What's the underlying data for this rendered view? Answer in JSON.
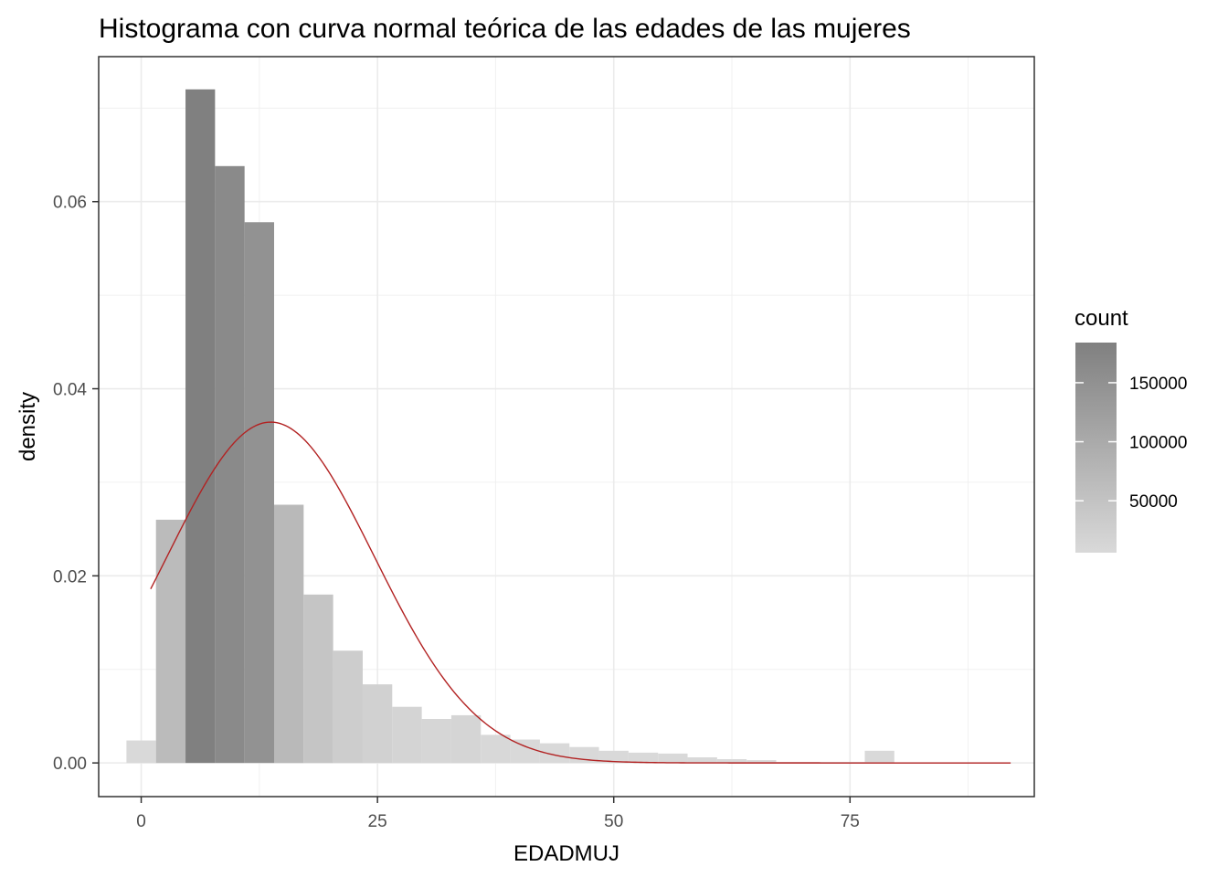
{
  "chart_data": {
    "type": "bar",
    "title": "Histograma con curva normal teórica de las edades de las mujeres",
    "xlabel": "EDADMUJ",
    "ylabel": "density",
    "xlim": [
      -4.5,
      94.5
    ],
    "ylim": [
      -0.0036,
      0.0755
    ],
    "x_ticks": [
      0,
      25,
      50,
      75
    ],
    "x_tick_labels": [
      "0",
      "25",
      "50",
      "75"
    ],
    "y_ticks": [
      0.0,
      0.02,
      0.04,
      0.06
    ],
    "y_tick_labels": [
      "0.00",
      "0.02",
      "0.04",
      "0.06"
    ],
    "grid": true,
    "bin_width": 3.125,
    "bins": [
      {
        "x0": -1.5625,
        "x1": 1.5625,
        "density": 0.0024
      },
      {
        "x0": 1.5625,
        "x1": 4.6875,
        "density": 0.026
      },
      {
        "x0": 4.6875,
        "x1": 7.8125,
        "density": 0.072
      },
      {
        "x0": 7.8125,
        "x1": 10.9375,
        "density": 0.0638
      },
      {
        "x0": 10.9375,
        "x1": 14.0625,
        "density": 0.0578
      },
      {
        "x0": 14.0625,
        "x1": 17.1875,
        "density": 0.0276
      },
      {
        "x0": 17.1875,
        "x1": 20.3125,
        "density": 0.018
      },
      {
        "x0": 20.3125,
        "x1": 23.4375,
        "density": 0.012
      },
      {
        "x0": 23.4375,
        "x1": 26.5625,
        "density": 0.0084
      },
      {
        "x0": 26.5625,
        "x1": 29.6875,
        "density": 0.006
      },
      {
        "x0": 29.6875,
        "x1": 32.8125,
        "density": 0.0047
      },
      {
        "x0": 32.8125,
        "x1": 35.9375,
        "density": 0.0051
      },
      {
        "x0": 35.9375,
        "x1": 39.0625,
        "density": 0.003
      },
      {
        "x0": 39.0625,
        "x1": 42.1875,
        "density": 0.0025
      },
      {
        "x0": 42.1875,
        "x1": 45.3125,
        "density": 0.0021
      },
      {
        "x0": 45.3125,
        "x1": 48.4375,
        "density": 0.0017
      },
      {
        "x0": 48.4375,
        "x1": 51.5625,
        "density": 0.0013
      },
      {
        "x0": 51.5625,
        "x1": 54.6875,
        "density": 0.0011
      },
      {
        "x0": 54.6875,
        "x1": 57.8125,
        "density": 0.001
      },
      {
        "x0": 57.8125,
        "x1": 60.9375,
        "density": 0.0006
      },
      {
        "x0": 60.9375,
        "x1": 64.0625,
        "density": 0.0004
      },
      {
        "x0": 64.0625,
        "x1": 67.1875,
        "density": 0.0003
      },
      {
        "x0": 67.1875,
        "x1": 70.3125,
        "density": 0.0001
      },
      {
        "x0": 70.3125,
        "x1": 73.4375,
        "density": 0.0001
      },
      {
        "x0": 73.4375,
        "x1": 76.5625,
        "density": 0.0001
      },
      {
        "x0": 76.5625,
        "x1": 79.6875,
        "density": 0.0013
      }
    ],
    "normal_curve": {
      "mean": 13.7,
      "sd": 10.95,
      "x_range": [
        1.0,
        92.0
      ],
      "color": "#b22222"
    },
    "fill_scale": {
      "title": "count",
      "low_color": "#d9d9d9",
      "high_color": "#808080",
      "legend_ticks": [
        50000,
        100000,
        150000
      ],
      "legend_tick_labels": [
        "50000",
        "100000",
        "150000"
      ],
      "count_range": [
        6000,
        184000
      ]
    },
    "legend_position": "right"
  }
}
